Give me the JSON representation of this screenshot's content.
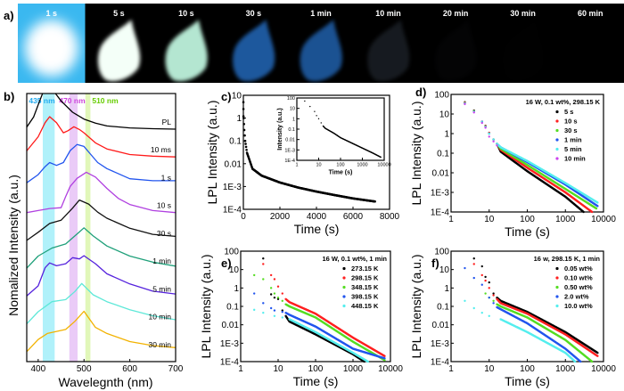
{
  "panel_labels": {
    "a": "a)",
    "b": "b)",
    "c": "c)",
    "d": "d)",
    "e": "e)",
    "f": "f)"
  },
  "photo_strip": {
    "frames": [
      {
        "label": "1 s",
        "background": "#3ab8f0",
        "glow": "#ffffff",
        "brightness": 1.0
      },
      {
        "label": "5 s",
        "background": "#000000",
        "glow": "#f4fff8",
        "brightness": 1.0
      },
      {
        "label": "10 s",
        "background": "#000000",
        "glow": "#c8ffe8",
        "brightness": 0.9
      },
      {
        "label": "30 s",
        "background": "#000000",
        "glow": "#2a7ee0",
        "brightness": 0.7
      },
      {
        "label": "1 min",
        "background": "#000000",
        "glow": "#2a7ee0",
        "brightness": 0.65
      },
      {
        "label": "10 min",
        "background": "#000000",
        "glow": "#5a6a80",
        "brightness": 0.25
      },
      {
        "label": "20 min",
        "background": "#000000",
        "glow": "#303640",
        "brightness": 0.08
      },
      {
        "label": "30 min",
        "background": "#000000",
        "glow": "#202428",
        "brightness": 0.04
      },
      {
        "label": "60 min",
        "background": "#000000",
        "glow": "#181a1c",
        "brightness": 0.02
      }
    ]
  },
  "chart_data": [
    {
      "panel": "b",
      "type": "line",
      "xlabel": "Wavelegnth (nm)",
      "ylabel": "Nomalized Intensity (a.u.)",
      "xlim": [
        375,
        700
      ],
      "xticks": [
        400,
        500,
        600,
        700
      ],
      "bands": [
        {
          "label": "435 nm",
          "range": [
            410,
            436
          ],
          "color": "#6fe6f5"
        },
        {
          "label": "470 nm",
          "range": [
            468,
            486
          ],
          "color": "#d9a0f0"
        },
        {
          "label": "510 nm",
          "range": [
            503,
            514
          ],
          "color": "#c8f080"
        }
      ],
      "series": [
        {
          "name": "PL",
          "color": "#000000",
          "x": [
            375,
            390,
            400,
            410,
            420,
            430,
            440,
            450,
            475,
            500,
            525,
            550,
            600,
            650,
            700
          ],
          "y": [
            0.05,
            0.3,
            0.6,
            0.9,
            1.0,
            0.98,
            0.85,
            0.7,
            0.42,
            0.25,
            0.15,
            0.08,
            0.03,
            0.01,
            0
          ]
        },
        {
          "name": "10 ms",
          "color": "#ff1a1a",
          "x": [
            375,
            400,
            415,
            425,
            440,
            455,
            465,
            478,
            490,
            500,
            525,
            550,
            600,
            650,
            700
          ],
          "y": [
            0.15,
            0.5,
            0.85,
            1.0,
            0.85,
            0.6,
            0.65,
            0.75,
            0.68,
            0.6,
            0.35,
            0.2,
            0.06,
            0.02,
            0
          ]
        },
        {
          "name": "1 s",
          "color": "#2255ee",
          "x": [
            375,
            400,
            415,
            425,
            440,
            455,
            470,
            485,
            500,
            515,
            530,
            550,
            600,
            650,
            700
          ],
          "y": [
            0.05,
            0.25,
            0.45,
            0.55,
            0.48,
            0.55,
            0.85,
            1.0,
            0.95,
            0.75,
            0.55,
            0.4,
            0.15,
            0.1,
            0.1
          ]
        },
        {
          "name": "10 s",
          "color": "#b040e0",
          "x": [
            375,
            400,
            425,
            450,
            460,
            470,
            485,
            505,
            525,
            550,
            575,
            600,
            650,
            700
          ],
          "y": [
            0,
            0.05,
            0.1,
            0.12,
            0.4,
            0.65,
            0.85,
            1.0,
            0.88,
            0.6,
            0.35,
            0.2,
            0.05,
            0
          ]
        },
        {
          "name": "30 s",
          "color": "#111111",
          "x": [
            375,
            400,
            425,
            450,
            475,
            490,
            510,
            530,
            550,
            600,
            650,
            700
          ],
          "y": [
            0,
            0.2,
            0.42,
            0.5,
            0.8,
            1.0,
            0.9,
            0.7,
            0.55,
            0.3,
            0.15,
            0.1
          ]
        },
        {
          "name": "1 min",
          "color": "#1fa07a",
          "x": [
            375,
            400,
            430,
            460,
            490,
            500,
            520,
            550,
            600,
            650,
            700
          ],
          "y": [
            0,
            0.3,
            0.5,
            0.6,
            0.9,
            1.0,
            0.8,
            0.55,
            0.3,
            0.15,
            0.05
          ]
        },
        {
          "name": "5 min",
          "color": "#5522dd",
          "x": [
            375,
            400,
            415,
            425,
            440,
            460,
            475,
            490,
            500,
            525,
            550,
            600,
            650,
            700
          ],
          "y": [
            0,
            0.25,
            0.7,
            0.82,
            0.75,
            0.8,
            0.95,
            0.92,
            1.0,
            0.8,
            0.55,
            0.3,
            0.12,
            0.05
          ]
        },
        {
          "name": "10 min",
          "color": "#5ee8d8",
          "x": [
            375,
            400,
            430,
            460,
            480,
            495,
            520,
            550,
            600,
            650,
            700
          ],
          "y": [
            0,
            0.3,
            0.55,
            0.6,
            0.8,
            1.0,
            0.72,
            0.55,
            0.35,
            0.2,
            0.1
          ]
        },
        {
          "name": "30 min",
          "color": "#f2b200",
          "x": [
            375,
            400,
            420,
            460,
            480,
            500,
            525,
            550,
            600,
            650,
            700
          ],
          "y": [
            0,
            0.3,
            0.45,
            0.55,
            0.75,
            1.0,
            0.6,
            0.45,
            0.25,
            0.15,
            0.1
          ]
        }
      ]
    },
    {
      "panel": "c",
      "type": "scatter",
      "xlabel": "Time (s)",
      "ylabel": "LPL Intensity (a.u.)",
      "xscale": "linear",
      "yscale": "log",
      "xlim": [
        0,
        8000
      ],
      "ylim": [
        0.0001,
        10
      ],
      "xticks": [
        0,
        2000,
        4000,
        6000,
        8000
      ],
      "yticks": [
        "10",
        "1",
        "0.1",
        "0.01",
        "1E-3",
        "1E-4"
      ],
      "series": [
        {
          "color": "#000000",
          "x": [
            2,
            4,
            6,
            20,
            50,
            100,
            200,
            500,
            1000,
            2000,
            3000,
            4000,
            5000,
            6000,
            7200
          ],
          "y": [
            5,
            2.5,
            1.2,
            1,
            0.3,
            0.1,
            0.03,
            0.006,
            0.003,
            0.0015,
            0.0009,
            0.0006,
            0.00042,
            0.0003,
            0.00022
          ]
        }
      ],
      "inset": {
        "xlabel": "Time (s)",
        "ylabel": "Intensity (a.u.)",
        "xscale": "log",
        "yscale": "log",
        "xlim": [
          1,
          10000
        ],
        "ylim": [
          0.0001,
          100
        ],
        "xticks": [
          "1",
          "10",
          "100",
          "1000",
          "10000"
        ],
        "yticks": [
          "100",
          "10",
          "1",
          "0.1",
          "0.01",
          "1E-3",
          "1E-4"
        ],
        "series": [
          {
            "color": "#000000",
            "x": [
              2.3,
              4,
              6.5,
              8,
              10,
              13,
              16,
              20,
              50,
              100,
              300,
              1000,
              3000,
              7000
            ],
            "y": [
              50,
              15,
              5,
              2,
              1,
              0.4,
              0.2,
              0.12,
              0.04,
              0.015,
              0.005,
              0.0015,
              0.0005,
              0.0002
            ]
          }
        ]
      }
    },
    {
      "panel": "d",
      "type": "scatter",
      "title": "16 W, 0.1 wt%, 298.15 K",
      "xlabel": "Time (s)",
      "ylabel": "LPL Intensity (a.u.)",
      "xscale": "log",
      "yscale": "log",
      "xlim": [
        1,
        10000
      ],
      "ylim": [
        0.0001,
        100
      ],
      "xticks": [
        "1",
        "10",
        "100",
        "1000",
        "10000"
      ],
      "yticks": [
        "100",
        "10",
        "1",
        "0.1",
        "0.01",
        "1E-3",
        "1E-4"
      ],
      "legend": "top-right",
      "series": [
        {
          "name": "5 s",
          "color": "#000000",
          "x": [
            2.3,
            4,
            6.5,
            8,
            10,
            13,
            16,
            20,
            100,
            1000,
            3000
          ],
          "y": [
            40,
            15,
            4,
            2.5,
            1.1,
            0.5,
            0.3,
            0.12,
            0.012,
            0.0006,
            0.0001
          ]
        },
        {
          "name": "10 s",
          "color": "#ff2020",
          "x": [
            2.3,
            4,
            6.5,
            8,
            10,
            13,
            16,
            20,
            100,
            1000,
            5000
          ],
          "y": [
            38,
            14,
            4,
            2.4,
            1.1,
            0.5,
            0.3,
            0.15,
            0.018,
            0.001,
            0.0001
          ]
        },
        {
          "name": "30 s",
          "color": "#55dd22",
          "x": [
            2.3,
            4,
            6.5,
            8,
            10,
            13,
            16,
            20,
            100,
            1000,
            6500
          ],
          "y": [
            36,
            14,
            4,
            2.3,
            1,
            0.5,
            0.3,
            0.17,
            0.025,
            0.0015,
            0.00015
          ]
        },
        {
          "name": "1 min",
          "color": "#2255ee",
          "x": [
            2.3,
            4,
            6.5,
            8,
            10,
            13,
            16,
            20,
            100,
            1000,
            7000
          ],
          "y": [
            35,
            13,
            4,
            2.2,
            1,
            0.5,
            0.3,
            0.2,
            0.035,
            0.0025,
            0.0002
          ]
        },
        {
          "name": "5 min",
          "color": "#55eeee",
          "x": [
            2.3,
            4,
            6.5,
            8,
            10,
            13,
            16,
            20,
            100,
            1000,
            7000
          ],
          "y": [
            34,
            13,
            3.8,
            2.2,
            1,
            0.5,
            0.3,
            0.2,
            0.04,
            0.003,
            0.0003
          ]
        },
        {
          "name": "10 min",
          "color": "#cc44ee",
          "x": [
            2.3,
            4,
            6.5,
            8,
            10,
            13,
            16
          ],
          "y": [
            32,
            12,
            3.5,
            2,
            0.7,
            0.4,
            0.25
          ]
        }
      ]
    },
    {
      "panel": "e",
      "type": "scatter",
      "title": "16 W, 0.1 wt%, 1 min",
      "xlabel": "Time (s)",
      "ylabel": "LPL Intensity (a.u.)",
      "xscale": "log",
      "yscale": "log",
      "xlim": [
        1,
        10000
      ],
      "ylim": [
        0.0001,
        100
      ],
      "xticks": [
        "1",
        "10",
        "100",
        "1000",
        "10000"
      ],
      "yticks": [
        "100",
        "10",
        "1",
        "0.1",
        "0.01",
        "1E-3",
        "1E-4"
      ],
      "legend": "top-right",
      "series": [
        {
          "name": "273.15 K",
          "color": "#000000",
          "x": [
            4,
            6.5,
            8,
            10,
            13,
            16,
            20,
            100,
            1000,
            2000
          ],
          "y": [
            40,
            0.45,
            0.3,
            0.25,
            0.06,
            0.03,
            0.015,
            0.003,
            0.00025,
            0.0001
          ]
        },
        {
          "name": "298.15 K",
          "color": "#ff2020",
          "x": [
            4,
            6.5,
            8,
            10,
            13,
            16,
            20,
            100,
            1000,
            7000
          ],
          "y": [
            20,
            5,
            3,
            1.2,
            0.5,
            0.25,
            0.17,
            0.04,
            0.002,
            0.0002
          ]
        },
        {
          "name": "348.15 K",
          "color": "#55dd22",
          "x": [
            2.3,
            4,
            6.5,
            8,
            10,
            13,
            16,
            20,
            100,
            1000,
            7000
          ],
          "y": [
            5,
            3,
            1,
            0.5,
            0.3,
            0.2,
            0.13,
            0.1,
            0.025,
            0.0012,
            0.00012
          ]
        },
        {
          "name": "398.15 K",
          "color": "#2255ee",
          "x": [
            2.3,
            4,
            6.5,
            8,
            13,
            16,
            20,
            100,
            1000,
            7000
          ],
          "y": [
            0.5,
            0.15,
            0.08,
            0.06,
            0.05,
            0.045,
            0.035,
            0.008,
            0.0005,
            0.00015
          ]
        },
        {
          "name": "448.15 K",
          "color": "#55eeee",
          "x": [
            2.3,
            4,
            8,
            13,
            20,
            100,
            1000,
            2500
          ],
          "y": [
            0.065,
            0.045,
            0.03,
            0.025,
            0.02,
            0.004,
            0.0003,
            0.0001
          ]
        }
      ]
    },
    {
      "panel": "f",
      "type": "scatter",
      "title": "16 w, 298.15 K, 1 min",
      "xlabel": "Time (s)",
      "ylabel": "LPL Intensity (a.u.)",
      "xscale": "log",
      "yscale": "log",
      "xlim": [
        1,
        10000
      ],
      "ylim": [
        0.0001,
        100
      ],
      "xticks": [
        "1",
        "10",
        "100",
        "1000",
        "10000"
      ],
      "yticks": [
        "100",
        "10",
        "1",
        "0.1",
        "0.01",
        "1E-3",
        "1E-4"
      ],
      "legend": "top-right",
      "series": [
        {
          "name": "0.05 wt%",
          "color": "#000000",
          "x": [
            4,
            6.5,
            8,
            10,
            13,
            16,
            20,
            100,
            1000,
            7000
          ],
          "y": [
            40,
            15,
            4,
            2,
            0.5,
            0.3,
            0.2,
            0.05,
            0.004,
            0.0003
          ]
        },
        {
          "name": "0.10 wt%",
          "color": "#ff2020",
          "x": [
            4,
            6.5,
            8,
            10,
            13,
            16,
            20,
            100,
            1000,
            7000
          ],
          "y": [
            20,
            5,
            2.5,
            1,
            0.4,
            0.25,
            0.15,
            0.04,
            0.003,
            0.0002
          ]
        },
        {
          "name": "0.50 wt%",
          "color": "#55dd22",
          "x": [
            8,
            10,
            13,
            16,
            20,
            100,
            1000,
            5000
          ],
          "y": [
            0.5,
            0.3,
            0.2,
            0.13,
            0.1,
            0.025,
            0.0015,
            0.0001
          ]
        },
        {
          "name": "2.0 wt%",
          "color": "#2255ee",
          "x": [
            2.3,
            4,
            6.5,
            10,
            13,
            16,
            20,
            100,
            1000,
            2500
          ],
          "y": [
            12,
            3.5,
            1.5,
            0.3,
            0.15,
            0.09,
            0.07,
            0.012,
            0.0005,
            0.0001
          ]
        },
        {
          "name": "10.0 wt%",
          "color": "#55eeee",
          "x": [
            2.3,
            4,
            6.5,
            10,
            20,
            100,
            1000,
            1800
          ],
          "y": [
            0.2,
            0.08,
            0.045,
            0.03,
            0.02,
            0.004,
            0.0003,
            0.0001
          ]
        }
      ]
    }
  ]
}
